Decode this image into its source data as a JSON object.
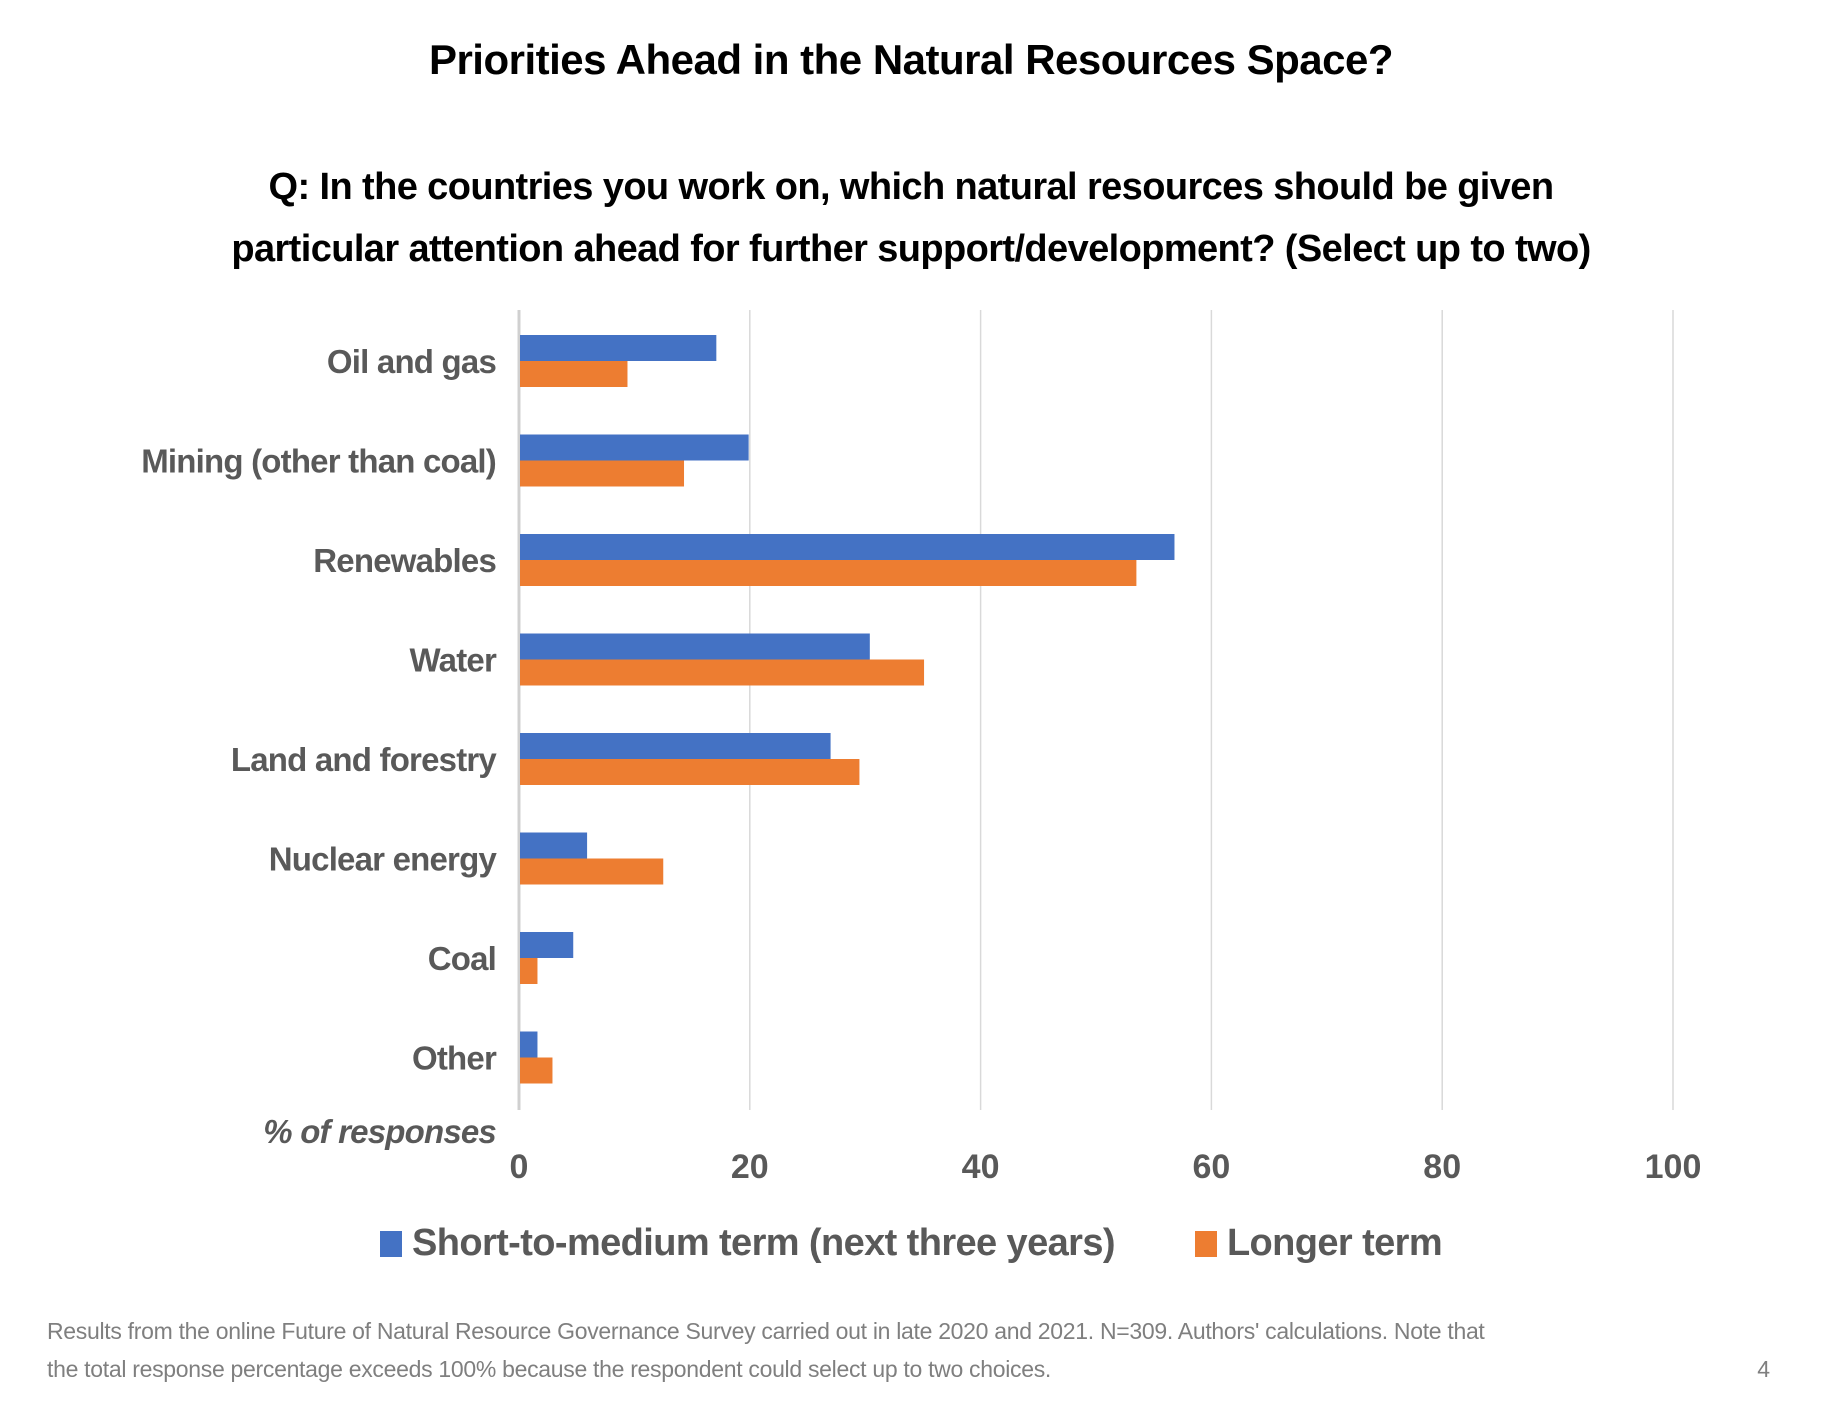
{
  "title": "Priorities Ahead in the Natural Resources Space?",
  "question_line1": "Q: In the countries you work on, which natural resources should be given",
  "question_line2": "particular attention ahead for further support/development? (Select up to two)",
  "footnote_line1": "Results from the online Future of Natural Resource Governance Survey carried out in late 2020 and 2021. N=309. Authors' calculations. Note that",
  "footnote_line2": "the total response percentage exceeds 100% because the respondent could select up to two choices.",
  "page_number": "4",
  "chart_data": {
    "type": "bar",
    "orientation": "horizontal",
    "categories": [
      "Oil and gas",
      "Mining (other than coal)",
      "Renewables",
      "Water",
      "Land and forestry",
      "Nuclear energy",
      "Coal",
      "Other"
    ],
    "series": [
      {
        "name": "Short-to-medium term (next three years)",
        "color": "#4472C4",
        "values": [
          17.1,
          19.9,
          56.8,
          30.4,
          27.0,
          5.9,
          4.7,
          1.6
        ]
      },
      {
        "name": "Longer term",
        "color": "#ED7D31",
        "values": [
          9.4,
          14.3,
          53.5,
          35.1,
          29.5,
          12.5,
          1.6,
          2.9
        ]
      }
    ],
    "xlabel": "% of responses",
    "xlim": [
      0,
      100
    ],
    "xticks": [
      "0",
      "20",
      "40",
      "60",
      "80",
      "100"
    ],
    "grid": true,
    "legend_position": "bottom"
  }
}
